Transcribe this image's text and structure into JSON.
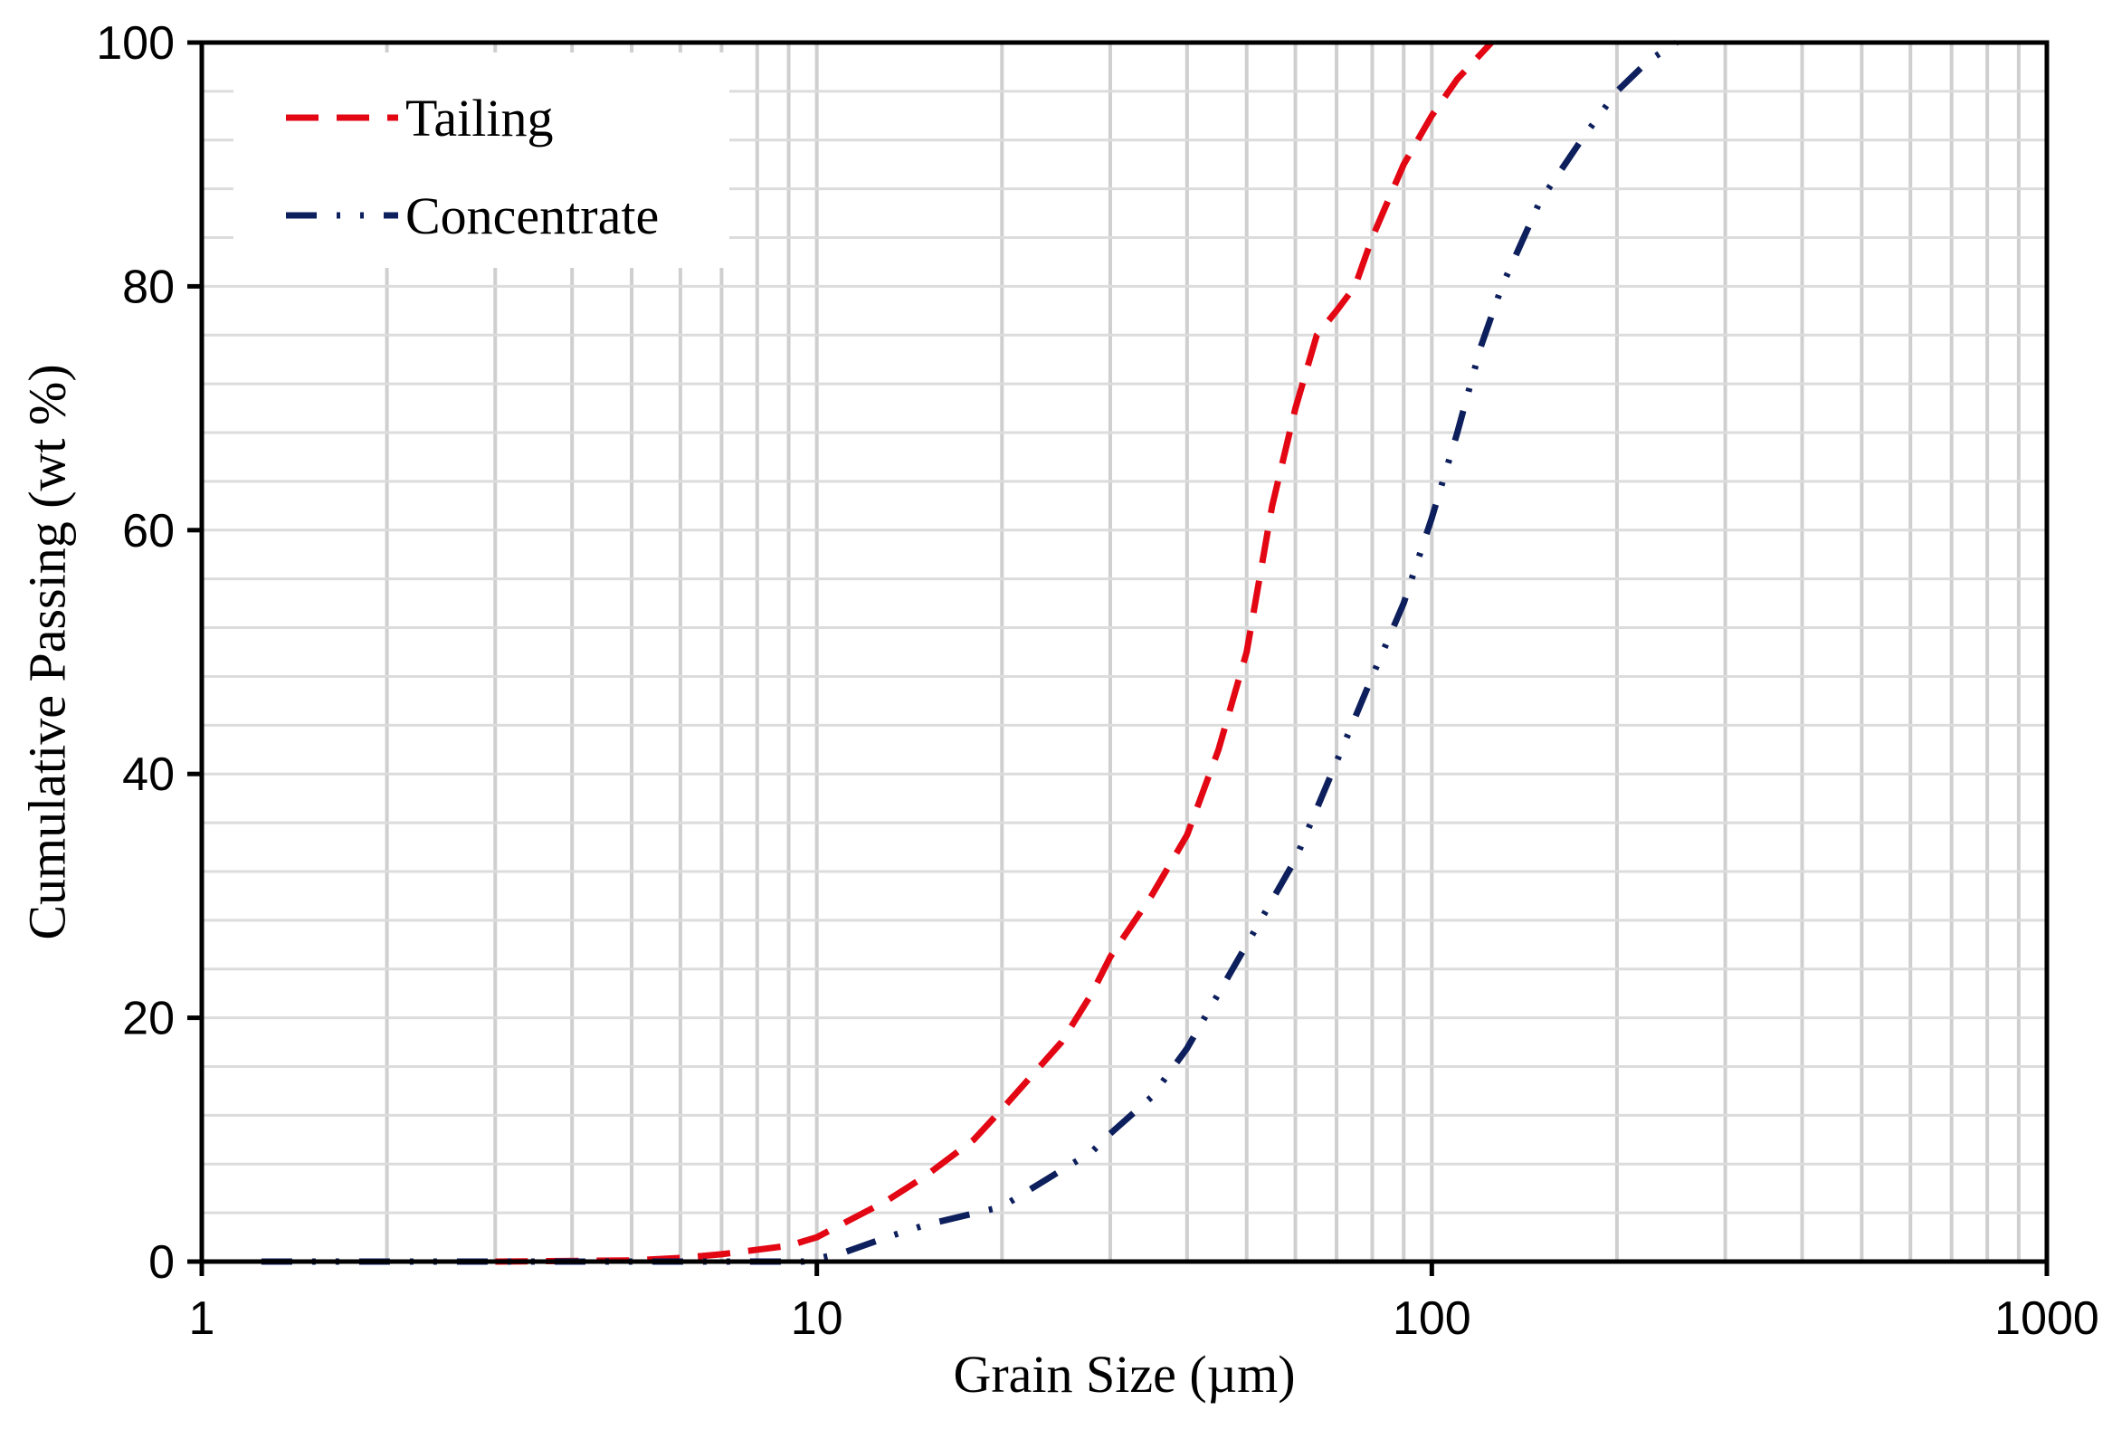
{
  "chart_data": {
    "type": "line",
    "xlabel": "Grain Size (µm)",
    "ylabel": "Cumulative Passing (wt %)",
    "x_scale": "log",
    "xlim": [
      1,
      1000
    ],
    "ylim": [
      0,
      100
    ],
    "x_ticks": [
      {
        "value": 1,
        "label": "1"
      },
      {
        "value": 10,
        "label": "10"
      },
      {
        "value": 100,
        "label": "100"
      },
      {
        "value": 1000,
        "label": "1000"
      }
    ],
    "y_ticks": [
      {
        "value": 0,
        "label": "0"
      },
      {
        "value": 20,
        "label": "20"
      },
      {
        "value": 40,
        "label": "40"
      },
      {
        "value": 60,
        "label": "60"
      },
      {
        "value": 80,
        "label": "80"
      },
      {
        "value": 100,
        "label": "100"
      }
    ],
    "grid": true,
    "legend_position": "top-left",
    "series": [
      {
        "name": "Tailing",
        "color": "#e30613",
        "dash": "dashed",
        "x": [
          3,
          5,
          6,
          7,
          9,
          10,
          13,
          15,
          18,
          20,
          25,
          28,
          30,
          35,
          40,
          45,
          50,
          55,
          60,
          65,
          70,
          75,
          80,
          90,
          100,
          110,
          125
        ],
        "y": [
          0.0,
          0.1,
          0.3,
          0.6,
          1.3,
          2.0,
          5.0,
          7.0,
          10.0,
          12.5,
          18.0,
          22.0,
          25.0,
          30.0,
          35.0,
          42.0,
          50.0,
          62.0,
          70.0,
          76.0,
          78.0,
          80.0,
          84.0,
          90.0,
          94.0,
          97.0,
          100.0
        ]
      },
      {
        "name": "Concentrate",
        "color": "#0d1f5c",
        "dash": "dash-dot-dot",
        "x": [
          1.25,
          2,
          3,
          5,
          7,
          9.5,
          11,
          13,
          15,
          20,
          25,
          28,
          30,
          35,
          40,
          45,
          50,
          60,
          70,
          80,
          90,
          100,
          110,
          120,
          130,
          150,
          175,
          200,
          225,
          250
        ],
        "y": [
          0.0,
          0.0,
          0.0,
          0.0,
          0.0,
          0.0,
          0.7,
          2.0,
          3.0,
          4.5,
          7.5,
          9.0,
          10.5,
          13.5,
          17.5,
          22.0,
          26.0,
          33.0,
          41.0,
          48.0,
          54.0,
          61.0,
          68.0,
          75.0,
          80.0,
          87.0,
          92.0,
          96.0,
          98.5,
          100.0
        ]
      }
    ]
  }
}
